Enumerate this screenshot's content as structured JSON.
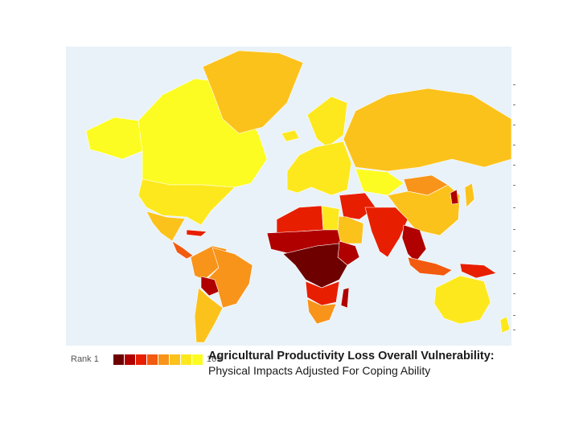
{
  "map": {
    "ocean_color": "#e8f2f8",
    "scale_colors": [
      "#6e0000",
      "#b00000",
      "#e81e00",
      "#f25a10",
      "#f8941a",
      "#fcc21c",
      "#fde81e",
      "#fcfc22"
    ],
    "regions": [
      {
        "name": "greenland",
        "level": 5
      },
      {
        "name": "canada",
        "level": 7
      },
      {
        "name": "alaska",
        "level": 7
      },
      {
        "name": "usa",
        "level": 6
      },
      {
        "name": "mexico",
        "level": 5
      },
      {
        "name": "central-america",
        "level": 3
      },
      {
        "name": "caribbean",
        "level": 2
      },
      {
        "name": "south-america-north",
        "level": 4
      },
      {
        "name": "brazil",
        "level": 4
      },
      {
        "name": "bolivia",
        "level": 1
      },
      {
        "name": "southern-cone",
        "level": 5
      },
      {
        "name": "iceland",
        "level": 6
      },
      {
        "name": "europe",
        "level": 6
      },
      {
        "name": "scandinavia",
        "level": 6
      },
      {
        "name": "russia",
        "level": 5
      },
      {
        "name": "kazakhstan",
        "level": 7
      },
      {
        "name": "mongolia",
        "level": 4
      },
      {
        "name": "china",
        "level": 5
      },
      {
        "name": "korea",
        "level": 1
      },
      {
        "name": "japan",
        "level": 5
      },
      {
        "name": "north-africa",
        "level": 2
      },
      {
        "name": "egypt",
        "level": 6
      },
      {
        "name": "sahel",
        "level": 1
      },
      {
        "name": "central-africa",
        "level": 0
      },
      {
        "name": "horn-of-africa",
        "level": 1
      },
      {
        "name": "southern-africa",
        "level": 2
      },
      {
        "name": "south-africa",
        "level": 4
      },
      {
        "name": "madagascar",
        "level": 1
      },
      {
        "name": "arabia",
        "level": 5
      },
      {
        "name": "middle-east",
        "level": 2
      },
      {
        "name": "south-asia",
        "level": 2
      },
      {
        "name": "southeast-asia",
        "level": 1
      },
      {
        "name": "indonesia",
        "level": 3
      },
      {
        "name": "papua",
        "level": 2
      },
      {
        "name": "australia",
        "level": 6
      },
      {
        "name": "new-zealand",
        "level": 6
      }
    ]
  },
  "legend": {
    "min_label": "Rank 1",
    "max_label": "169"
  },
  "title": "Agricultural Productivity Loss Overall Vulnerability:",
  "subtitle": "Physical Impacts Adjusted For Coping Ability"
}
